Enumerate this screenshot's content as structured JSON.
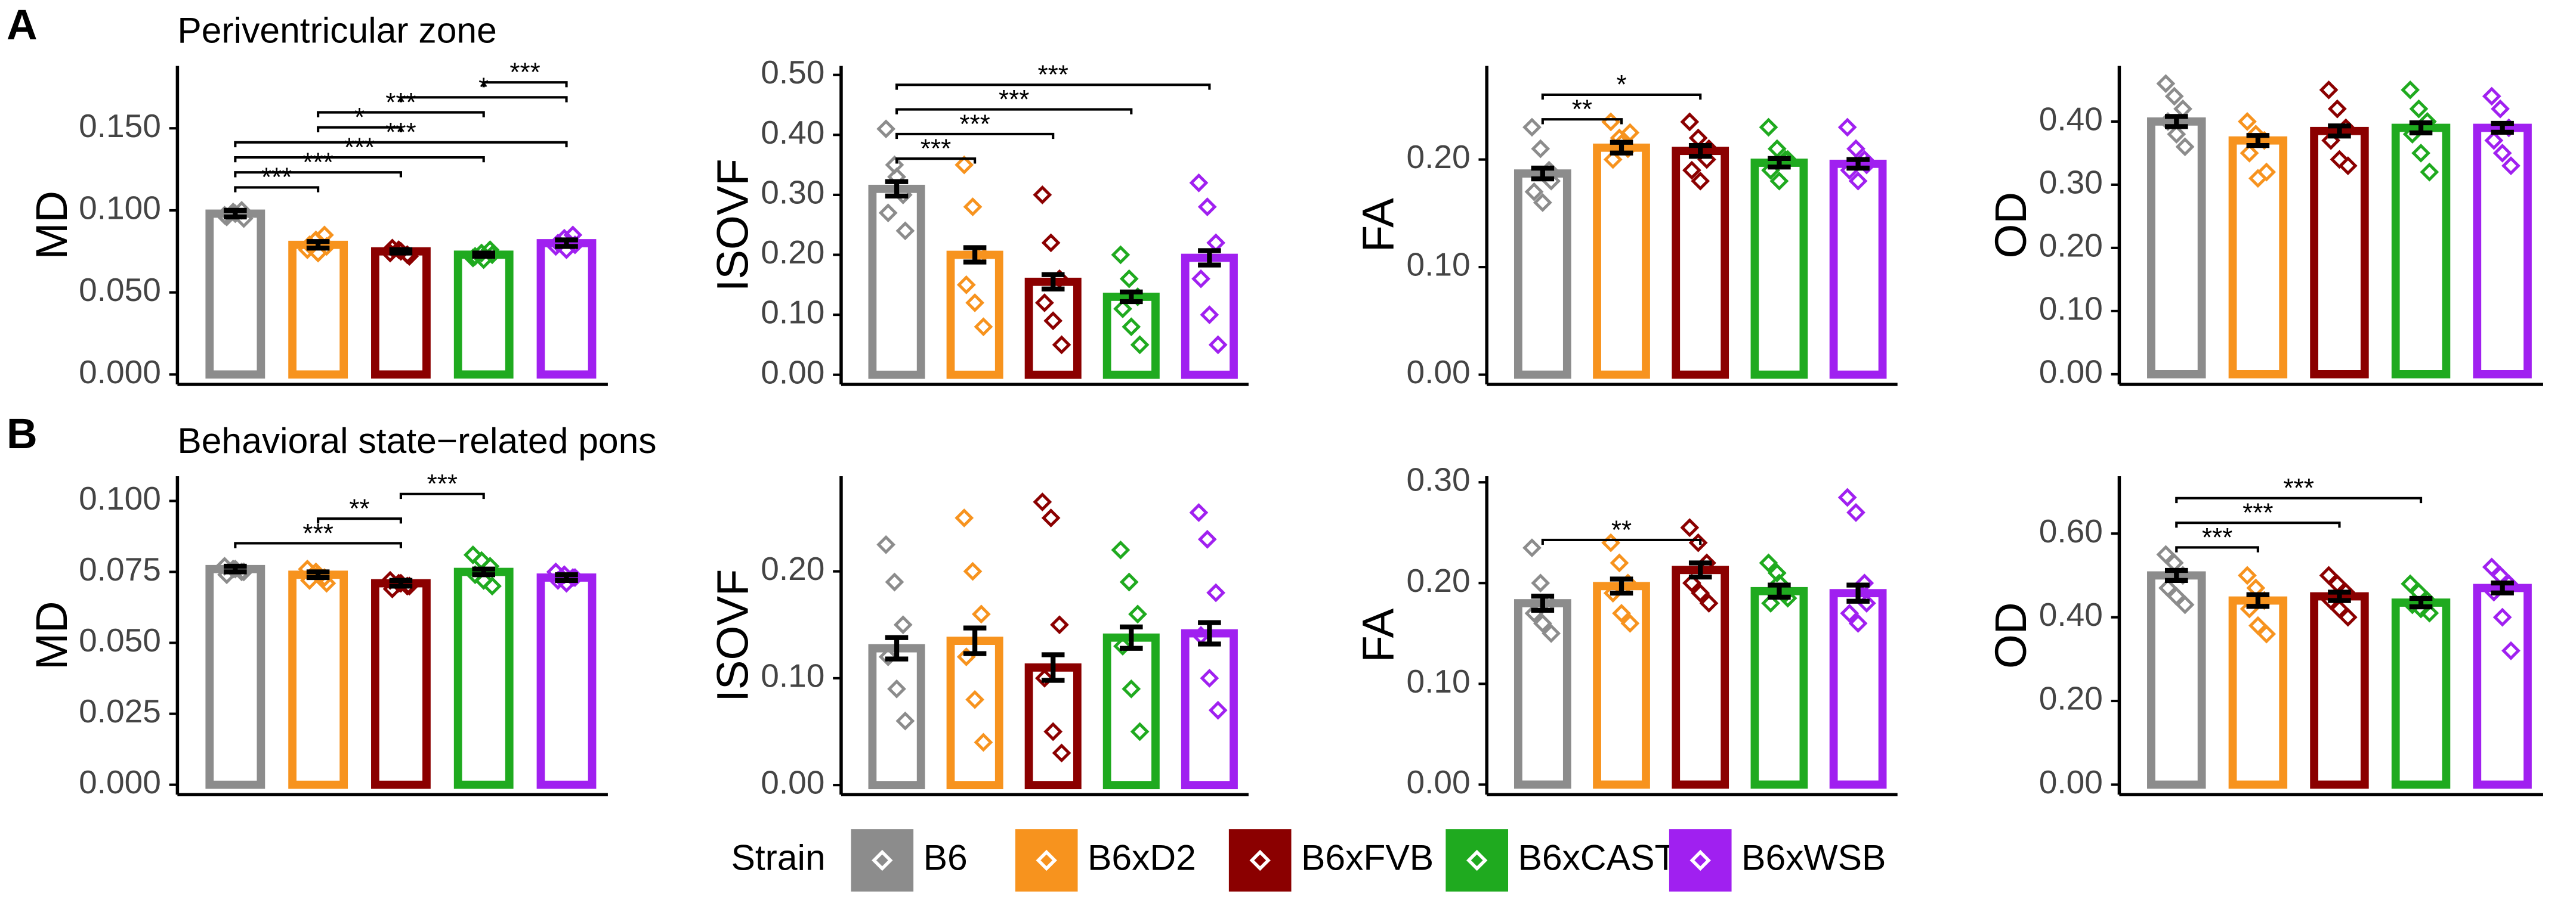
{
  "panel_labels": [
    "A",
    "B"
  ],
  "legend": {
    "title": "Strain",
    "categories": [
      "B6",
      "B6xD2",
      "B6xFVB",
      "B6xCAST",
      "B6xWSB"
    ],
    "colors": [
      "#8c8c8c",
      "#f7931e",
      "#8b0000",
      "#1faa1f",
      "#a020f0"
    ]
  },
  "chart_data": [
    {
      "type": "bar",
      "title": "Periventricular zone",
      "ylabel": "MD",
      "values": [
        0.098,
        0.079,
        0.075,
        0.073,
        0.08
      ],
      "errors": [
        0.002,
        0.002,
        0.001,
        0.001,
        0.002
      ],
      "points": [
        [
          0.097,
          0.099,
          0.1,
          0.096,
          0.098,
          0.095
        ],
        [
          0.076,
          0.082,
          0.085,
          0.079,
          0.074,
          0.078
        ],
        [
          0.074,
          0.076,
          0.073,
          0.077,
          0.075,
          0.072
        ],
        [
          0.071,
          0.074,
          0.076,
          0.072,
          0.07,
          0.073
        ],
        [
          0.078,
          0.083,
          0.085,
          0.08,
          0.076,
          0.079
        ]
      ],
      "ylim": [
        -0.006,
        0.188
      ],
      "yticks": [
        {
          "value": 0,
          "label": "0.000"
        },
        {
          "value": 0.05,
          "label": "0.050"
        },
        {
          "value": 0.1,
          "label": "0.100"
        },
        {
          "value": 0.15,
          "label": "0.150"
        }
      ],
      "brackets": [
        {
          "from": 0,
          "to": 1,
          "label": "***"
        },
        {
          "from": 0,
          "to": 2,
          "label": "***"
        },
        {
          "from": 0,
          "to": 3,
          "label": "***"
        },
        {
          "from": 0,
          "to": 4,
          "label": "***"
        },
        {
          "from": 1,
          "to": 2,
          "label": "*"
        },
        {
          "from": 1,
          "to": 3,
          "label": "***"
        },
        {
          "from": 2,
          "to": 4,
          "label": "*"
        },
        {
          "from": 3,
          "to": 4,
          "label": "***"
        }
      ]
    },
    {
      "type": "bar",
      "ylabel": "ISOVF",
      "values": [
        0.31,
        0.2,
        0.155,
        0.13,
        0.195
      ],
      "errors": [
        0.012,
        0.012,
        0.012,
        0.008,
        0.012
      ],
      "points": [
        [
          0.41,
          0.35,
          0.3,
          0.27,
          0.33,
          0.24
        ],
        [
          0.35,
          0.28,
          0.2,
          0.15,
          0.12,
          0.08
        ],
        [
          0.3,
          0.22,
          0.16,
          0.12,
          0.09,
          0.05
        ],
        [
          0.2,
          0.16,
          0.13,
          0.11,
          0.08,
          0.05
        ],
        [
          0.32,
          0.28,
          0.22,
          0.16,
          0.1,
          0.05
        ]
      ],
      "ylim": [
        -0.016,
        0.515
      ],
      "yticks": [
        {
          "value": 0,
          "label": "0.00"
        },
        {
          "value": 0.1,
          "label": "0.10"
        },
        {
          "value": 0.2,
          "label": "0.20"
        },
        {
          "value": 0.3,
          "label": "0.30"
        },
        {
          "value": 0.4,
          "label": "0.40"
        },
        {
          "value": 0.5,
          "label": "0.50"
        }
      ],
      "brackets": [
        {
          "from": 0,
          "to": 1,
          "label": "***"
        },
        {
          "from": 0,
          "to": 2,
          "label": "***"
        },
        {
          "from": 0,
          "to": 3,
          "label": "***"
        },
        {
          "from": 0,
          "to": 4,
          "label": "***"
        }
      ]
    },
    {
      "type": "bar",
      "ylabel": "FA",
      "values": [
        0.187,
        0.211,
        0.208,
        0.197,
        0.196
      ],
      "errors": [
        0.005,
        0.005,
        0.005,
        0.004,
        0.004
      ],
      "points": [
        [
          0.23,
          0.21,
          0.19,
          0.17,
          0.16,
          0.18
        ],
        [
          0.235,
          0.22,
          0.21,
          0.2,
          0.215,
          0.225
        ],
        [
          0.235,
          0.22,
          0.2,
          0.19,
          0.18,
          0.21
        ],
        [
          0.23,
          0.21,
          0.2,
          0.19,
          0.18,
          0.2
        ],
        [
          0.23,
          0.21,
          0.2,
          0.19,
          0.18,
          0.195
        ]
      ],
      "ylim": [
        -0.009,
        0.287
      ],
      "yticks": [
        {
          "value": 0,
          "label": "0.00"
        },
        {
          "value": 0.1,
          "label": "0.10"
        },
        {
          "value": 0.2,
          "label": "0.20"
        }
      ],
      "brackets": [
        {
          "from": 0,
          "to": 1,
          "label": "**"
        },
        {
          "from": 0,
          "to": 2,
          "label": "*"
        }
      ]
    },
    {
      "type": "bar",
      "ylabel": "OD",
      "values": [
        0.4,
        0.37,
        0.385,
        0.39,
        0.39
      ],
      "errors": [
        0.008,
        0.008,
        0.008,
        0.008,
        0.007
      ],
      "points": [
        [
          0.46,
          0.44,
          0.42,
          0.4,
          0.38,
          0.36
        ],
        [
          0.4,
          0.38,
          0.37,
          0.35,
          0.31,
          0.32
        ],
        [
          0.45,
          0.42,
          0.39,
          0.37,
          0.34,
          0.33
        ],
        [
          0.45,
          0.42,
          0.4,
          0.38,
          0.35,
          0.32
        ],
        [
          0.44,
          0.42,
          0.39,
          0.37,
          0.35,
          0.33
        ]
      ],
      "ylim": [
        -0.016,
        0.488
      ],
      "yticks": [
        {
          "value": 0,
          "label": "0.00"
        },
        {
          "value": 0.1,
          "label": "0.10"
        },
        {
          "value": 0.2,
          "label": "0.20"
        },
        {
          "value": 0.3,
          "label": "0.30"
        },
        {
          "value": 0.4,
          "label": "0.40"
        }
      ],
      "brackets": []
    },
    {
      "type": "bar",
      "title": "Behavioral state−related pons",
      "ylabel": "MD",
      "values": [
        0.076,
        0.074,
        0.071,
        0.075,
        0.073
      ],
      "errors": [
        0.001,
        0.001,
        0.001,
        0.001,
        0.001
      ],
      "points": [
        [
          0.077,
          0.076,
          0.075,
          0.074,
          0.076,
          0.075
        ],
        [
          0.076,
          0.075,
          0.073,
          0.072,
          0.074,
          0.071
        ],
        [
          0.072,
          0.071,
          0.07,
          0.069,
          0.071,
          0.07
        ],
        [
          0.081,
          0.079,
          0.077,
          0.074,
          0.072,
          0.07
        ],
        [
          0.075,
          0.074,
          0.073,
          0.072,
          0.071,
          0.073
        ]
      ],
      "ylim": [
        -0.0035,
        0.1087
      ],
      "yticks": [
        {
          "value": 0,
          "label": "0.000"
        },
        {
          "value": 0.025,
          "label": "0.025"
        },
        {
          "value": 0.05,
          "label": "0.050"
        },
        {
          "value": 0.075,
          "label": "0.075"
        },
        {
          "value": 0.1,
          "label": "0.100"
        }
      ],
      "brackets": [
        {
          "from": 0,
          "to": 2,
          "label": "***"
        },
        {
          "from": 1,
          "to": 2,
          "label": "**"
        },
        {
          "from": 2,
          "to": 3,
          "label": "***"
        }
      ]
    },
    {
      "type": "bar",
      "ylabel": "ISOVF",
      "values": [
        0.128,
        0.135,
        0.11,
        0.138,
        0.142
      ],
      "errors": [
        0.01,
        0.012,
        0.012,
        0.01,
        0.01
      ],
      "points": [
        [
          0.225,
          0.19,
          0.15,
          0.12,
          0.09,
          0.06
        ],
        [
          0.25,
          0.2,
          0.16,
          0.12,
          0.08,
          0.04
        ],
        [
          0.265,
          0.25,
          0.15,
          0.1,
          0.05,
          0.03
        ],
        [
          0.22,
          0.19,
          0.16,
          0.13,
          0.09,
          0.05
        ],
        [
          0.255,
          0.23,
          0.18,
          0.14,
          0.1,
          0.07
        ]
      ],
      "ylim": [
        -0.009,
        0.289
      ],
      "yticks": [
        {
          "value": 0,
          "label": "0.00"
        },
        {
          "value": 0.1,
          "label": "0.10"
        },
        {
          "value": 0.2,
          "label": "0.20"
        }
      ],
      "brackets": []
    },
    {
      "type": "bar",
      "ylabel": "FA",
      "values": [
        0.18,
        0.197,
        0.213,
        0.192,
        0.19
      ],
      "errors": [
        0.007,
        0.007,
        0.007,
        0.006,
        0.008
      ],
      "points": [
        [
          0.235,
          0.2,
          0.18,
          0.17,
          0.16,
          0.15
        ],
        [
          0.24,
          0.22,
          0.2,
          0.19,
          0.17,
          0.16
        ],
        [
          0.255,
          0.24,
          0.22,
          0.2,
          0.19,
          0.18
        ],
        [
          0.22,
          0.21,
          0.19,
          0.18,
          0.2,
          0.185
        ],
        [
          0.285,
          0.27,
          0.2,
          0.17,
          0.16,
          0.18
        ]
      ],
      "ylim": [
        -0.01,
        0.306
      ],
      "yticks": [
        {
          "value": 0,
          "label": "0.00"
        },
        {
          "value": 0.1,
          "label": "0.10"
        },
        {
          "value": 0.2,
          "label": "0.20"
        },
        {
          "value": 0.3,
          "label": "0.30"
        }
      ],
      "brackets": [
        {
          "from": 0,
          "to": 2,
          "label": "**"
        }
      ]
    },
    {
      "type": "bar",
      "ylabel": "OD",
      "values": [
        0.5,
        0.44,
        0.45,
        0.435,
        0.47
      ],
      "errors": [
        0.012,
        0.014,
        0.01,
        0.01,
        0.012
      ],
      "points": [
        [
          0.55,
          0.53,
          0.5,
          0.47,
          0.45,
          0.43
        ],
        [
          0.5,
          0.47,
          0.44,
          0.42,
          0.38,
          0.36
        ],
        [
          0.5,
          0.48,
          0.46,
          0.44,
          0.42,
          0.4
        ],
        [
          0.48,
          0.46,
          0.44,
          0.43,
          0.42,
          0.41
        ],
        [
          0.52,
          0.5,
          0.48,
          0.46,
          0.4,
          0.32
        ]
      ],
      "ylim": [
        -0.024,
        0.737
      ],
      "yticks": [
        {
          "value": 0,
          "label": "0.00"
        },
        {
          "value": 0.2,
          "label": "0.20"
        },
        {
          "value": 0.4,
          "label": "0.40"
        },
        {
          "value": 0.6,
          "label": "0.60"
        }
      ],
      "brackets": [
        {
          "from": 0,
          "to": 1,
          "label": "***"
        },
        {
          "from": 0,
          "to": 2,
          "label": "***"
        },
        {
          "from": 0,
          "to": 3,
          "label": "***"
        }
      ]
    }
  ]
}
